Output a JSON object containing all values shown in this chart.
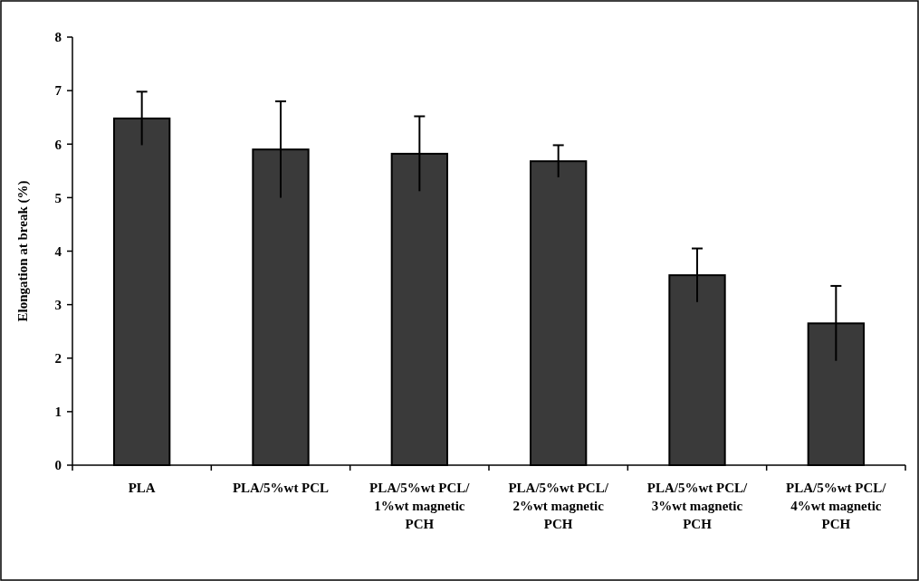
{
  "chart_data": {
    "type": "bar",
    "ylabel": "Elongation at break (%)",
    "categories": [
      "PLA",
      "PLA/5%wt PCL",
      "PLA/5%wt PCL/ 1%wt magnetic PCH",
      "PLA/5%wt PCL/ 2%wt magnetic PCH",
      "PLA/5%wt PCL/ 3%wt magnetic PCH",
      "PLA/5%wt PCL/ 4%wt magnetic PCH"
    ],
    "values": [
      6.48,
      5.9,
      5.82,
      5.68,
      3.55,
      2.65
    ],
    "errors": [
      0.5,
      0.9,
      0.7,
      0.3,
      0.5,
      0.7
    ],
    "color": "#3a3a3a",
    "ylim": [
      0,
      8
    ],
    "yticks": [
      0,
      1,
      2,
      3,
      4,
      5,
      6,
      7,
      8
    ],
    "grid": false
  }
}
